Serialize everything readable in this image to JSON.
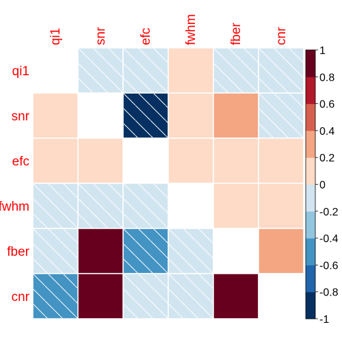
{
  "chart_data": {
    "type": "heatmap",
    "title": "",
    "variables": [
      "qi1",
      "snr",
      "efc",
      "fwhm",
      "fber",
      "cnr"
    ],
    "matrix": [
      [
        null,
        -0.2,
        -0.2,
        0.2,
        -0.2,
        -0.2
      ],
      [
        0.2,
        null,
        -0.8,
        0.2,
        0.4,
        -0.2
      ],
      [
        0.2,
        0.2,
        null,
        0.2,
        0.2,
        0.2
      ],
      [
        -0.2,
        -0.2,
        -0.2,
        null,
        0.2,
        0.2
      ],
      [
        -0.2,
        1.0,
        -0.4,
        -0.2,
        null,
        0.4
      ],
      [
        -0.4,
        1.0,
        -0.2,
        -0.2,
        0.8,
        null
      ]
    ],
    "hatched_negative": true,
    "diagonal": "blank",
    "color_scale": {
      "range": [
        -1,
        1
      ],
      "ticks": [
        "1",
        "0.8",
        "0.6",
        "0.4",
        "0.2",
        "0",
        "-0.2",
        "-0.4",
        "-0.6",
        "-0.8",
        "-1"
      ],
      "colors": [
        "#053061",
        "#2166ac",
        "#4393c3",
        "#92c5de",
        "#d1e5f0",
        "#fddbc7",
        "#f4a582",
        "#d6604d",
        "#b2182b",
        "#67001f"
      ],
      "legend_position": "right"
    },
    "label_color": "#ff0000",
    "grid_color": "#ffffff"
  }
}
